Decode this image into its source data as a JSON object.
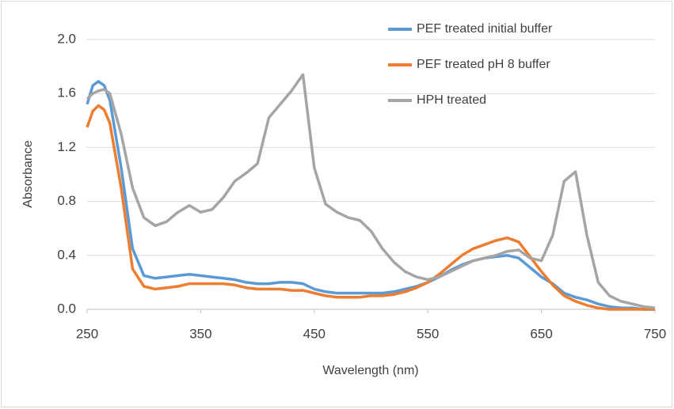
{
  "chart_data": {
    "type": "line",
    "x_label": "Wavelength (nm)",
    "y_label": "Absorbance",
    "x": [
      250,
      255,
      260,
      265,
      270,
      280,
      290,
      300,
      310,
      320,
      330,
      340,
      350,
      360,
      370,
      380,
      390,
      400,
      410,
      420,
      430,
      440,
      450,
      460,
      470,
      480,
      490,
      500,
      510,
      520,
      530,
      540,
      550,
      560,
      570,
      580,
      590,
      600,
      610,
      620,
      630,
      640,
      650,
      660,
      670,
      680,
      690,
      700,
      710,
      720,
      730,
      740,
      750
    ],
    "series": [
      {
        "name": "PEF treated initial buffer",
        "color": "#5b9bd5",
        "values": [
          1.52,
          1.66,
          1.69,
          1.66,
          1.55,
          1.05,
          0.45,
          0.25,
          0.23,
          0.24,
          0.25,
          0.26,
          0.25,
          0.24,
          0.23,
          0.22,
          0.2,
          0.19,
          0.19,
          0.2,
          0.2,
          0.19,
          0.15,
          0.13,
          0.12,
          0.12,
          0.12,
          0.12,
          0.12,
          0.13,
          0.15,
          0.17,
          0.2,
          0.24,
          0.29,
          0.33,
          0.36,
          0.38,
          0.39,
          0.4,
          0.38,
          0.31,
          0.24,
          0.19,
          0.12,
          0.09,
          0.07,
          0.04,
          0.02,
          0.01,
          0.01,
          0,
          0
        ]
      },
      {
        "name": "PEF treated pH 8 buffer",
        "color": "#ed7d31",
        "values": [
          1.35,
          1.47,
          1.51,
          1.48,
          1.38,
          0.9,
          0.3,
          0.17,
          0.15,
          0.16,
          0.17,
          0.19,
          0.19,
          0.19,
          0.19,
          0.18,
          0.16,
          0.15,
          0.15,
          0.15,
          0.14,
          0.14,
          0.12,
          0.1,
          0.09,
          0.09,
          0.09,
          0.1,
          0.1,
          0.11,
          0.13,
          0.16,
          0.2,
          0.26,
          0.33,
          0.4,
          0.45,
          0.48,
          0.51,
          0.53,
          0.5,
          0.39,
          0.28,
          0.18,
          0.1,
          0.06,
          0.03,
          0.01,
          0,
          0,
          0,
          0,
          0
        ]
      },
      {
        "name": "HPH treated",
        "color": "#a5a5a5",
        "values": [
          1.56,
          1.6,
          1.62,
          1.63,
          1.6,
          1.3,
          0.9,
          0.68,
          0.62,
          0.65,
          0.72,
          0.77,
          0.72,
          0.74,
          0.83,
          0.95,
          1.01,
          1.08,
          1.42,
          1.52,
          1.62,
          1.74,
          1.05,
          0.78,
          0.72,
          0.68,
          0.66,
          0.58,
          0.45,
          0.35,
          0.28,
          0.24,
          0.22,
          0.24,
          0.28,
          0.32,
          0.36,
          0.38,
          0.4,
          0.43,
          0.44,
          0.38,
          0.36,
          0.55,
          0.95,
          1.02,
          0.55,
          0.2,
          0.1,
          0.06,
          0.04,
          0.02,
          0.01
        ]
      }
    ],
    "xlim": [
      250,
      750
    ],
    "xticks": [
      250,
      350,
      450,
      550,
      650,
      750
    ],
    "ylim": [
      0,
      2
    ],
    "yticks": [
      {
        "value": 0,
        "label": "0.0"
      },
      0.4,
      0.8,
      1.2,
      1.6,
      {
        "value": 2,
        "label": "2.0"
      }
    ],
    "grid": true,
    "legend": "top-right"
  }
}
